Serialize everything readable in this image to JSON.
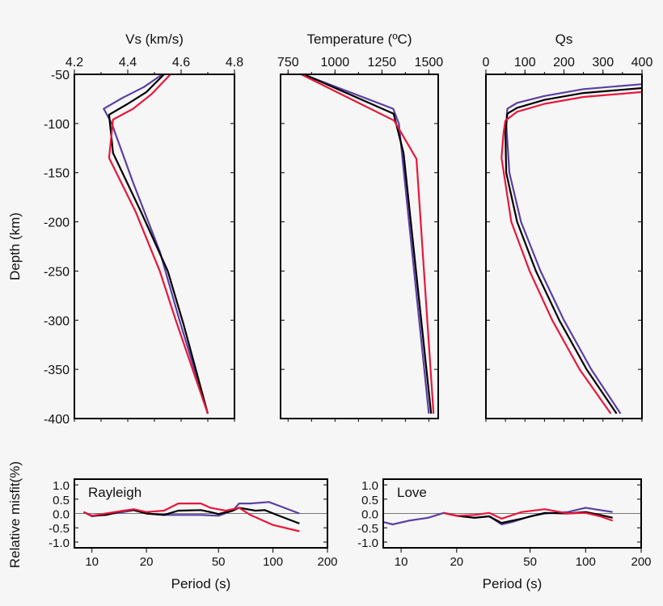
{
  "chart_data": [
    {
      "type": "line",
      "title": "",
      "xlabel": "Vs (km/s)",
      "ylabel": "Depth (km)",
      "xlim": [
        4.2,
        4.8
      ],
      "ylim": [
        -400,
        -50
      ],
      "xticks": [
        "4.2",
        "4.4",
        "4.6",
        "4.8"
      ],
      "xtick_values": [
        4.2,
        4.4,
        4.6,
        4.8
      ],
      "xminor": 0.1,
      "yticks": [
        "-50",
        "-100",
        "-150",
        "-200",
        "-250",
        "-300",
        "-350",
        "-400"
      ],
      "ytick_values": [
        -50,
        -100,
        -150,
        -200,
        -250,
        -300,
        -350,
        -400
      ],
      "series": [
        {
          "color": "#5b3fa3",
          "x": [
            4.53,
            4.46,
            4.38,
            4.31,
            4.34,
            4.42,
            4.52,
            4.594,
            4.7
          ],
          "y": [
            -50,
            -63,
            -74,
            -85,
            -100,
            -160,
            -230,
            -300,
            -395
          ]
        },
        {
          "color": "#000000",
          "x": [
            4.536,
            4.47,
            4.4,
            4.33,
            4.345,
            4.45,
            4.55,
            4.61,
            4.7
          ],
          "y": [
            -50,
            -68,
            -80,
            -91,
            -130,
            -190,
            -250,
            -305,
            -395
          ]
        },
        {
          "color": "#e8173a",
          "x": [
            4.56,
            4.49,
            4.42,
            4.345,
            4.33,
            4.43,
            4.52,
            4.58,
            4.7
          ],
          "y": [
            -50,
            -70,
            -85,
            -96,
            -135,
            -190,
            -250,
            -300,
            -395
          ]
        }
      ]
    },
    {
      "type": "line",
      "title": "",
      "xlabel": "Temperature (ºC)",
      "ylabel": "",
      "xlim": [
        710,
        1550
      ],
      "ylim": [
        -400,
        -50
      ],
      "xticks": [
        "750",
        "1000",
        "1250",
        "1500"
      ],
      "xtick_values": [
        750,
        1000,
        1250,
        1500
      ],
      "xminor": 125,
      "series": [
        {
          "color": "#5b3fa3",
          "x": [
            830,
            1310,
            1340,
            1500
          ],
          "y": [
            -50,
            -85,
            -100,
            -395
          ]
        },
        {
          "color": "#000000",
          "x": [
            835,
            1312,
            1365,
            1512
          ],
          "y": [
            -50,
            -90,
            -130,
            -395
          ]
        },
        {
          "color": "#e8173a",
          "x": [
            820,
            1315,
            1434,
            1525
          ],
          "y": [
            -50,
            -97,
            -136,
            -395
          ]
        }
      ]
    },
    {
      "type": "line",
      "title": "",
      "xlabel": "Qs",
      "ylabel": "",
      "xlim": [
        0,
        400
      ],
      "ylim": [
        -400,
        -50
      ],
      "xticks": [
        "0",
        "100",
        "200",
        "300",
        "400"
      ],
      "xtick_values": [
        0,
        100,
        200,
        300,
        400
      ],
      "xminor": 50,
      "series": [
        {
          "color": "#5b3fa3",
          "x": [
            400,
            250,
            150,
            80,
            55,
            52,
            60,
            90,
            140,
            200,
            270,
            345
          ],
          "y": [
            -60,
            -65,
            -72,
            -79,
            -85,
            -100,
            -150,
            -200,
            -250,
            -300,
            -350,
            -395
          ]
        },
        {
          "color": "#000000",
          "x": [
            400,
            250,
            150,
            80,
            55,
            50,
            52,
            80,
            128,
            188,
            258,
            335
          ],
          "y": [
            -64,
            -69,
            -76,
            -84,
            -90,
            -110,
            -150,
            -200,
            -250,
            -300,
            -350,
            -395
          ]
        },
        {
          "color": "#e8173a",
          "x": [
            400,
            250,
            150,
            80,
            50,
            45,
            40,
            65,
            112,
            170,
            240,
            320
          ],
          "y": [
            -68,
            -73,
            -80,
            -88,
            -97,
            -110,
            -135,
            -200,
            -250,
            -300,
            -350,
            -395
          ]
        }
      ]
    },
    {
      "type": "line",
      "title": "",
      "annotation": "Rayleigh",
      "xlabel": "Period (s)",
      "ylabel": "Relative misfit(%)",
      "xscale": "log",
      "xlim": [
        8,
        200
      ],
      "ylim": [
        -1.2,
        1.2
      ],
      "xticks": [
        "10",
        "20",
        "50",
        "100",
        "200"
      ],
      "xtick_values": [
        10,
        20,
        50,
        100,
        200
      ],
      "yticks": [
        "1.0",
        "0.5",
        "0.0",
        "-0.5",
        "-1.0"
      ],
      "ytick_values": [
        1,
        0.5,
        0,
        -0.5,
        -1
      ],
      "series": [
        {
          "color": "#5b3fa3",
          "x": [
            9,
            10,
            15,
            17,
            20,
            25,
            30,
            40,
            50,
            60,
            65,
            75,
            95,
            110,
            140
          ],
          "y": [
            0.05,
            -0.1,
            0.05,
            0.12,
            0.0,
            -0.05,
            -0.05,
            -0.05,
            -0.08,
            0.1,
            0.35,
            0.35,
            0.4,
            0.25,
            0.0
          ]
        },
        {
          "color": "#000000",
          "x": [
            9,
            10,
            12,
            15,
            17,
            20,
            25,
            30,
            40,
            45,
            50,
            60,
            65,
            80,
            90,
            110,
            140
          ],
          "y": [
            0.05,
            -0.08,
            -0.05,
            0.1,
            0.12,
            0.0,
            -0.05,
            0.1,
            0.12,
            0.05,
            -0.02,
            0.1,
            0.2,
            0.1,
            0.12,
            -0.1,
            -0.35
          ]
        },
        {
          "color": "#e8173a",
          "x": [
            9,
            10,
            15,
            17,
            20,
            25,
            30,
            40,
            45,
            55,
            65,
            75,
            100,
            140
          ],
          "y": [
            0.05,
            -0.08,
            0.1,
            0.15,
            0.05,
            0.1,
            0.35,
            0.35,
            0.2,
            0.1,
            0.2,
            -0.05,
            -0.4,
            -0.62
          ]
        }
      ]
    },
    {
      "type": "line",
      "title": "",
      "annotation": "Love",
      "xlabel": "Period (s)",
      "ylabel": "",
      "xscale": "log",
      "xlim": [
        8,
        200
      ],
      "ylim": [
        -1.2,
        1.2
      ],
      "xticks": [
        "10",
        "20",
        "50",
        "100",
        "200"
      ],
      "xtick_values": [
        10,
        20,
        50,
        100,
        200
      ],
      "yticks": [
        "1.0",
        "0.5",
        "0.0",
        "-0.5",
        "-1.0"
      ],
      "ytick_values": [
        1,
        0.5,
        0,
        -0.5,
        -1
      ],
      "series": [
        {
          "color": "#5b3fa3",
          "x": [
            8,
            9,
            11,
            14,
            17,
            20,
            25,
            30,
            35,
            40,
            50,
            60,
            80,
            100,
            120,
            140
          ],
          "y": [
            -0.3,
            -0.38,
            -0.25,
            -0.15,
            0.02,
            -0.08,
            -0.15,
            -0.1,
            -0.38,
            -0.3,
            -0.1,
            0.0,
            0.05,
            0.2,
            0.12,
            0.05
          ]
        },
        {
          "color": "#000000",
          "x": [
            17,
            20,
            25,
            30,
            35,
            45,
            60,
            80,
            100,
            120,
            140
          ],
          "y": [
            0.02,
            -0.08,
            -0.15,
            -0.1,
            -0.33,
            -0.18,
            0.02,
            0.0,
            0.05,
            -0.05,
            -0.15
          ]
        },
        {
          "color": "#e8173a",
          "x": [
            17,
            20,
            25,
            30,
            35,
            45,
            60,
            80,
            100,
            120,
            140
          ],
          "y": [
            0.02,
            -0.08,
            -0.05,
            0.02,
            -0.18,
            0.05,
            0.15,
            0.0,
            0.02,
            -0.1,
            -0.25
          ]
        }
      ]
    }
  ]
}
